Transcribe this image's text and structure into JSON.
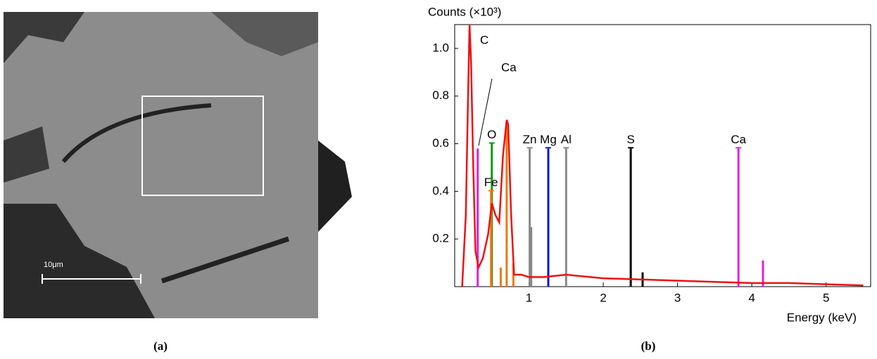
{
  "image": {
    "scale_bar": "10μm"
  },
  "captions": [
    "(a)",
    "(b)"
  ],
  "chart_data": {
    "type": "line",
    "y_label": "Counts (×10³)",
    "x_label": "Energy (keV)",
    "xlim": [
      0,
      5.6
    ],
    "ylim": [
      0,
      1.1
    ],
    "xticks": [
      1,
      2,
      3,
      4,
      5
    ],
    "yticks": [
      0.2,
      0.4,
      0.6,
      0.8,
      {
        "value": 1,
        "label": "1.0"
      }
    ],
    "color": "#ee1111",
    "x": [
      0.1,
      0.15,
      0.18,
      0.2,
      0.22,
      0.25,
      0.28,
      0.32,
      0.38,
      0.45,
      0.5,
      0.55,
      0.6,
      0.65,
      0.7,
      0.72,
      0.76,
      0.8,
      0.9,
      1.0,
      1.2,
      1.5,
      2,
      2.5,
      3,
      3.5,
      4,
      4.5,
      5,
      5.5
    ],
    "values": [
      0,
      0.3,
      0.8,
      1.1,
      0.95,
      0.5,
      0.15,
      0.08,
      0.12,
      0.22,
      0.35,
      0.3,
      0.27,
      0.55,
      0.7,
      0.68,
      0.3,
      0.05,
      0.05,
      0.04,
      0.04,
      0.05,
      0.035,
      0.03,
      0.025,
      0.02,
      0.015,
      0.015,
      0.01,
      0.005
    ],
    "annotations": [
      "C"
    ],
    "elements": [
      {
        "name": "Ca",
        "color": "#e020e0",
        "x": [
          0.31
        ],
        "values": [
          0.58
        ]
      },
      {
        "name": "O",
        "color": "#119911",
        "x": [
          0.5
        ],
        "values": [
          0.6
        ]
      },
      {
        "name": "Fe",
        "color": "#ee7711",
        "x": [
          0.49,
          0.62,
          0.7,
          0.79
        ],
        "values": [
          0.4,
          0.08,
          0.68,
          0.1
        ]
      },
      {
        "name": "Zn",
        "color": "#888888",
        "x": [
          1.01,
          1.03
        ],
        "values": [
          0.58,
          0.25
        ]
      },
      {
        "name": "Mg",
        "color": "#1111dd",
        "x": [
          1.26
        ],
        "values": [
          0.58
        ]
      },
      {
        "name": "Al",
        "color": "#888888",
        "x": [
          1.5
        ],
        "values": [
          0.58
        ]
      },
      {
        "name": "S",
        "color": "#000000",
        "x": [
          2.37,
          2.53
        ],
        "values": [
          0.58,
          0.06
        ]
      },
      {
        "name": "Ca",
        "color": "#e020e0",
        "x": [
          3.82,
          4.15
        ],
        "values": [
          0.58,
          0.11
        ]
      }
    ]
  }
}
